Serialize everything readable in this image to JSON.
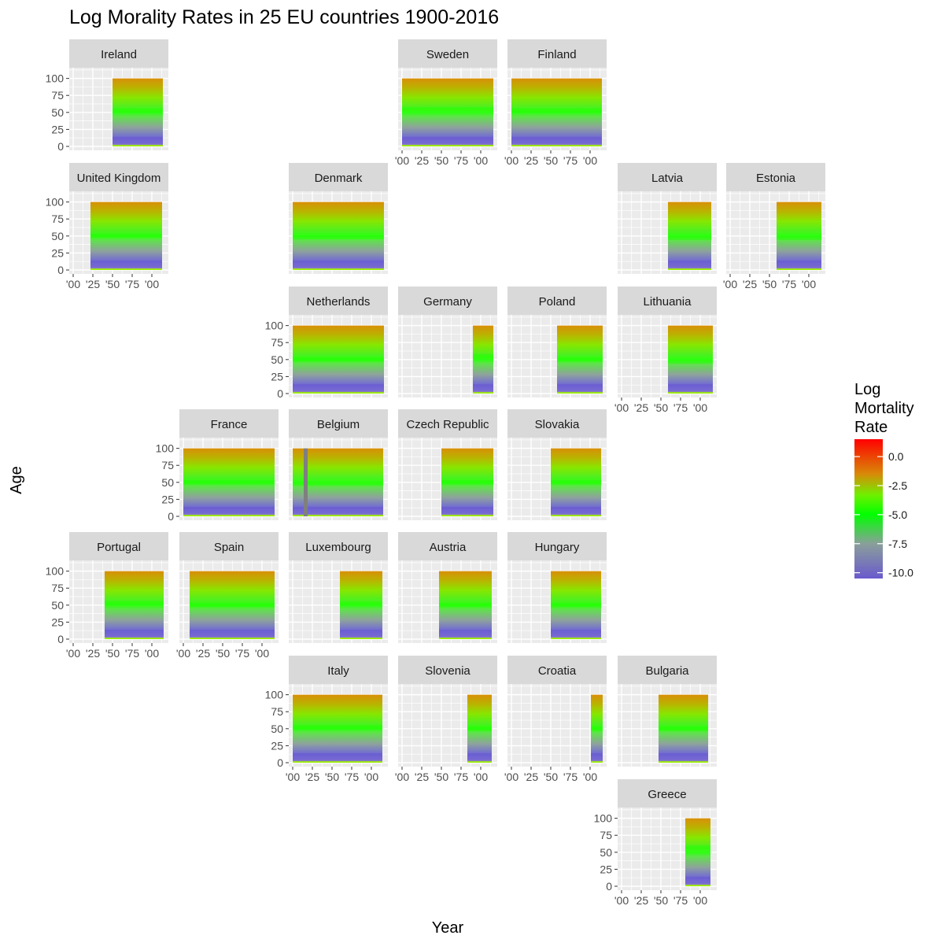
{
  "chart_data": {
    "type": "heatmap",
    "title": "Log Morality Rates in 25 EU countries 1900-2016",
    "xlabel": "Year",
    "ylabel": "Age",
    "xlim": [
      1900,
      2016
    ],
    "ylim": [
      0,
      110
    ],
    "x_ticks": [
      1900,
      1925,
      1950,
      1975,
      2000
    ],
    "x_tick_labels": [
      "'00",
      "'25",
      "'50",
      "'75",
      "'00"
    ],
    "y_ticks": [
      0,
      25,
      50,
      75,
      100
    ],
    "y_tick_labels": [
      "0",
      "25",
      "50",
      "75",
      "100"
    ],
    "legend": {
      "title_lines": [
        "Log",
        "Mortality",
        "Rate"
      ],
      "min": -10.5,
      "max": 1.5,
      "breaks": [
        0,
        -2.5,
        -5,
        -7.5,
        -10
      ],
      "break_labels": [
        "0.0",
        "-2.5",
        "-5.0",
        "-7.5",
        "-10.0"
      ],
      "colors": [
        "#6a5acd",
        "#00ff00",
        "#ff0000"
      ],
      "position": "right"
    },
    "panels": [
      {
        "country": "Ireland",
        "start": 1950,
        "end": 2014,
        "hump_age": 53,
        "row": 0,
        "col": 0
      },
      {
        "country": "Sweden",
        "start": 1900,
        "end": 2016,
        "hump_age": 55,
        "row": 0,
        "col": 3
      },
      {
        "country": "Finland",
        "start": 1900,
        "end": 2015,
        "hump_age": 53,
        "row": 0,
        "col": 4
      },
      {
        "country": "United Kingdom",
        "start": 1922,
        "end": 2013,
        "hump_age": 50,
        "row": 1,
        "col": 0
      },
      {
        "country": "Denmark",
        "start": 1900,
        "end": 2016,
        "hump_age": 48,
        "row": 1,
        "col": 2
      },
      {
        "country": "Latvia",
        "start": 1959,
        "end": 2014,
        "hump_age": 47,
        "row": 1,
        "col": 5
      },
      {
        "country": "Estonia",
        "start": 1959,
        "end": 2016,
        "hump_age": 47,
        "row": 1,
        "col": 6
      },
      {
        "country": "Netherlands",
        "start": 1900,
        "end": 2016,
        "hump_age": 50,
        "row": 2,
        "col": 2
      },
      {
        "country": "Germany",
        "start": 1990,
        "end": 2016,
        "hump_age": 55,
        "row": 2,
        "col": 3
      },
      {
        "country": "Poland",
        "start": 1958,
        "end": 2016,
        "hump_age": 50,
        "row": 2,
        "col": 4
      },
      {
        "country": "Lithuania",
        "start": 1959,
        "end": 2016,
        "hump_age": 47,
        "row": 2,
        "col": 5
      },
      {
        "country": "France",
        "start": 1900,
        "end": 2016,
        "hump_age": 50,
        "row": 3,
        "col": 1
      },
      {
        "country": "Belgium",
        "start": 1900,
        "end": 2015,
        "hump_age": 48,
        "row": 3,
        "col": 2,
        "missing": [
          1914,
          1919
        ]
      },
      {
        "country": "Czech Republic",
        "start": 1950,
        "end": 2016,
        "hump_age": 50,
        "row": 3,
        "col": 3
      },
      {
        "country": "Slovakia",
        "start": 1950,
        "end": 2014,
        "hump_age": 50,
        "row": 3,
        "col": 4
      },
      {
        "country": "Portugal",
        "start": 1940,
        "end": 2015,
        "hump_age": 53,
        "row": 4,
        "col": 0
      },
      {
        "country": "Spain",
        "start": 1908,
        "end": 2016,
        "hump_age": 50,
        "row": 4,
        "col": 1
      },
      {
        "country": "Luxembourg",
        "start": 1960,
        "end": 2014,
        "hump_age": 52,
        "row": 4,
        "col": 2
      },
      {
        "country": "Austria",
        "start": 1947,
        "end": 2014,
        "hump_age": 50,
        "row": 4,
        "col": 3
      },
      {
        "country": "Hungary",
        "start": 1950,
        "end": 2014,
        "hump_age": 50,
        "row": 4,
        "col": 4
      },
      {
        "country": "Italy",
        "start": 1900,
        "end": 2014,
        "hump_age": 52,
        "row": 5,
        "col": 2
      },
      {
        "country": "Slovenia",
        "start": 1983,
        "end": 2014,
        "hump_age": 50,
        "row": 5,
        "col": 3
      },
      {
        "country": "Croatia",
        "start": 2001,
        "end": 2016,
        "hump_age": 50,
        "row": 5,
        "col": 4
      },
      {
        "country": "Bulgaria",
        "start": 1947,
        "end": 2010,
        "hump_age": 50,
        "row": 5,
        "col": 5
      },
      {
        "country": "Greece",
        "start": 1981,
        "end": 2013,
        "hump_age": 57,
        "row": 6,
        "col": 5
      }
    ]
  }
}
